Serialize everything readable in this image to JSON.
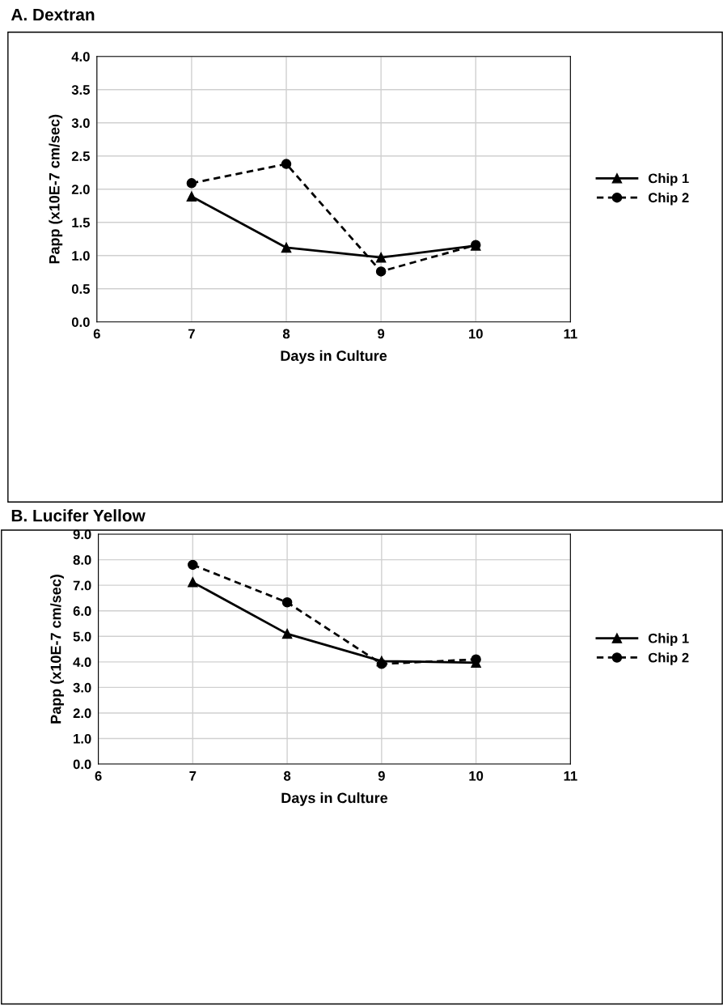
{
  "chart_data": [
    {
      "type": "line",
      "title": "A. Dextran",
      "xlabel": "Days in Culture",
      "ylabel": "Papp (x10E-7 cm/sec)",
      "x": [
        7,
        8,
        9,
        10
      ],
      "xlim": [
        6,
        11
      ],
      "xticks": [
        6,
        7,
        8,
        9,
        10,
        11
      ],
      "ylim": [
        0,
        4
      ],
      "yticks": [
        {
          "value": 0,
          "label": "0.0"
        },
        {
          "value": 0.5,
          "label": "0.5"
        },
        {
          "value": 1,
          "label": "1.0"
        },
        {
          "value": 1.5,
          "label": "1.5"
        },
        {
          "value": 2,
          "label": "2.0"
        },
        {
          "value": 2.5,
          "label": "2.5"
        },
        {
          "value": 3,
          "label": "3.0"
        },
        {
          "value": 3.5,
          "label": "3.5"
        },
        {
          "value": 4,
          "label": "4.0"
        }
      ],
      "grid": true,
      "legend": "right",
      "series": [
        {
          "name": "Chip 1",
          "color": "#000000",
          "marker": "triangle",
          "line_style": "solid",
          "values": [
            1.89,
            1.12,
            0.97,
            1.15
          ]
        },
        {
          "name": "Chip 2",
          "color": "#000000",
          "marker": "circle",
          "line_style": "dashed",
          "values": [
            2.09,
            2.38,
            0.76,
            1.16
          ]
        }
      ]
    },
    {
      "type": "line",
      "title": "B. Lucifer Yellow",
      "xlabel": "Days in Culture",
      "ylabel": "Papp (x10E-7 cm/sec)",
      "x": [
        7,
        8,
        9,
        10
      ],
      "xlim": [
        6,
        11
      ],
      "xticks": [
        6,
        7,
        8,
        9,
        10,
        11
      ],
      "ylim": [
        0,
        9
      ],
      "yticks": [
        {
          "value": 0,
          "label": "0.0"
        },
        {
          "value": 1,
          "label": "1.0"
        },
        {
          "value": 2,
          "label": "2.0"
        },
        {
          "value": 3,
          "label": "3.0"
        },
        {
          "value": 4,
          "label": "4.0"
        },
        {
          "value": 5,
          "label": "5.0"
        },
        {
          "value": 6,
          "label": "6.0"
        },
        {
          "value": 7,
          "label": "7.0"
        },
        {
          "value": 8,
          "label": "8.0"
        },
        {
          "value": 9,
          "label": "9.0"
        }
      ],
      "grid": true,
      "legend": "right",
      "series": [
        {
          "name": "Chip 1",
          "color": "#000000",
          "marker": "triangle",
          "line_style": "solid",
          "values": [
            7.12,
            5.1,
            4.03,
            3.97
          ]
        },
        {
          "name": "Chip 2",
          "color": "#000000",
          "marker": "circle",
          "line_style": "dashed",
          "values": [
            7.8,
            6.33,
            3.92,
            4.1
          ]
        }
      ]
    }
  ]
}
